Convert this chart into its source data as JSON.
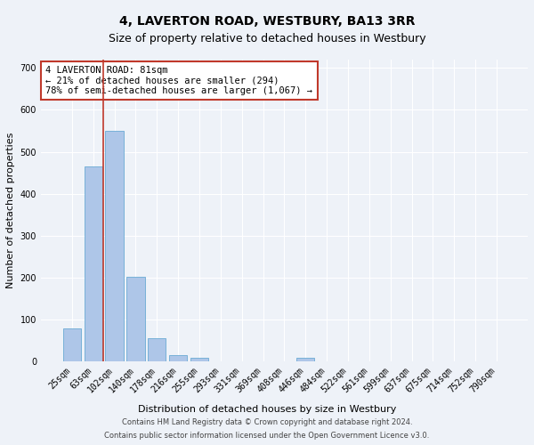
{
  "title": "4, LAVERTON ROAD, WESTBURY, BA13 3RR",
  "subtitle": "Size of property relative to detached houses in Westbury",
  "xlabel": "Distribution of detached houses by size in Westbury",
  "ylabel": "Number of detached properties",
  "footnote1": "Contains HM Land Registry data © Crown copyright and database right 2024.",
  "footnote2": "Contains public sector information licensed under the Open Government Licence v3.0.",
  "categories": [
    "25sqm",
    "63sqm",
    "102sqm",
    "140sqm",
    "178sqm",
    "216sqm",
    "255sqm",
    "293sqm",
    "331sqm",
    "369sqm",
    "408sqm",
    "446sqm",
    "484sqm",
    "522sqm",
    "561sqm",
    "599sqm",
    "637sqm",
    "675sqm",
    "714sqm",
    "752sqm",
    "790sqm"
  ],
  "values": [
    80,
    465,
    550,
    203,
    55,
    15,
    8,
    0,
    0,
    0,
    0,
    8,
    0,
    0,
    0,
    0,
    0,
    0,
    0,
    0,
    0
  ],
  "bar_color": "#aec6e8",
  "bar_edge_color": "#6aaad4",
  "property_line_x": 1.47,
  "property_line_color": "#c0392b",
  "annotation_text": "4 LAVERTON ROAD: 81sqm\n← 21% of detached houses are smaller (294)\n78% of semi-detached houses are larger (1,067) →",
  "annotation_box_color": "#ffffff",
  "annotation_box_edge": "#c0392b",
  "ylim": [
    0,
    720
  ],
  "yticks": [
    0,
    100,
    200,
    300,
    400,
    500,
    600,
    700
  ],
  "background_color": "#eef2f8",
  "grid_color": "#ffffff",
  "title_fontsize": 10,
  "subtitle_fontsize": 9,
  "axis_label_fontsize": 8,
  "tick_fontsize": 7,
  "footnote_fontsize": 6
}
